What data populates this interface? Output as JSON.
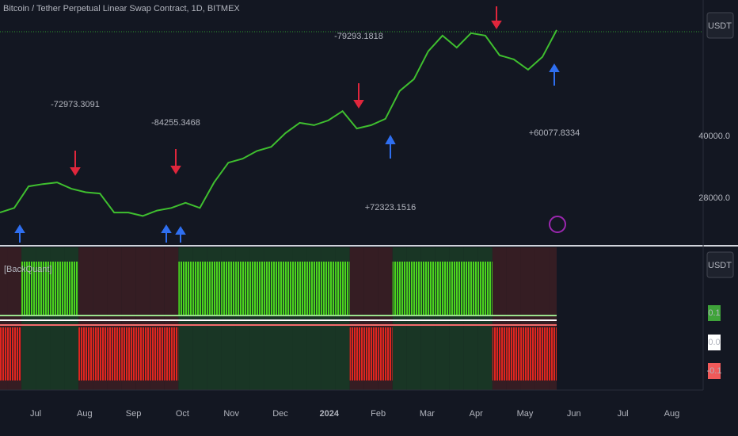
{
  "header": {
    "title": "Bitcoin / Tether Perpetual Linear Swap Contract, 1D, BITMEX",
    "currency": "USDT"
  },
  "chart_data": {
    "type": "line",
    "log_scale": true,
    "color": "#3fbf2f",
    "values": [
      25800,
      26500,
      30000,
      30400,
      30700,
      29600,
      29000,
      28800,
      25800,
      25800,
      25300,
      26100,
      26500,
      27300,
      26500,
      30700,
      34400,
      35200,
      36800,
      37700,
      40800,
      43300,
      42700,
      43900,
      46300,
      41900,
      42700,
      44300,
      52000,
      55700,
      65400,
      71600,
      66800,
      72600,
      71600,
      63900,
      62400,
      58800,
      63300,
      73900
    ],
    "ylim": [
      21500,
      87900
    ],
    "yticks": [
      {
        "value": 28000,
        "label": "28000.0"
      },
      {
        "value": 40000,
        "label": "40000.0"
      }
    ],
    "annotations": [
      "-72973.3091",
      "-84255.3468",
      "-79293.1818",
      "+72323.1516",
      "+60077.8334"
    ]
  },
  "oscillator": {
    "name": "[BackQuant]",
    "currency": "USDT",
    "states": [
      -1,
      -1,
      1,
      1,
      1,
      1,
      -1,
      -1,
      -1,
      -1,
      -1,
      -1,
      -1,
      1,
      1,
      1,
      1,
      1,
      1,
      1,
      1,
      1,
      1,
      1,
      1,
      -1,
      -1,
      -1,
      1,
      1,
      1,
      1,
      1,
      1,
      1,
      -1,
      -1,
      -1,
      -1,
      -1
    ],
    "scale_labels": [
      "0.1",
      "0.0",
      "-0.1"
    ]
  },
  "x_axis": {
    "labels": [
      "Jul",
      "Aug",
      "Sep",
      "Oct",
      "Nov",
      "Dec",
      "2024",
      "Feb",
      "Mar",
      "Apr",
      "May",
      "Jun",
      "Jul",
      "Aug"
    ]
  }
}
